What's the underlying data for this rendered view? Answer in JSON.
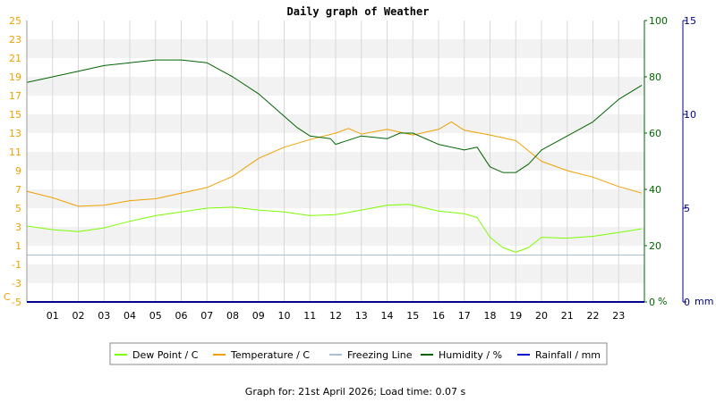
{
  "chart_data": {
    "type": "line",
    "title": "Daily graph of Weather",
    "x_ticks": [
      "01",
      "02",
      "03",
      "04",
      "05",
      "06",
      "07",
      "08",
      "09",
      "10",
      "11",
      "12",
      "13",
      "14",
      "15",
      "16",
      "17",
      "18",
      "19",
      "20",
      "21",
      "22",
      "23"
    ],
    "x_range_hours": [
      0,
      24
    ],
    "left_axis": {
      "unit_label": "C",
      "range": [
        -5,
        25
      ],
      "ticks": [
        "25",
        "23",
        "21",
        "19",
        "17",
        "15",
        "13",
        "11",
        "9",
        "7",
        "5",
        "3",
        "1",
        "-1",
        "-3",
        "-5"
      ],
      "color": "#f0a000"
    },
    "humidity_axis": {
      "unit_label": "%",
      "range": [
        0,
        100
      ],
      "ticks": [
        "100",
        "80",
        "60",
        "40",
        "20",
        "0"
      ],
      "color": "#006400"
    },
    "rainfall_axis": {
      "unit_label": "mm",
      "range": [
        0,
        15
      ],
      "ticks": [
        "15",
        "10",
        "5",
        "0"
      ],
      "color": "#00008b"
    },
    "grid": true,
    "legend_placement": "bottom",
    "series": [
      {
        "name": "Dew Point / C",
        "color": "#7cfc00",
        "axis": "left",
        "points": [
          [
            0,
            3.1
          ],
          [
            1,
            2.7
          ],
          [
            2,
            2.5
          ],
          [
            3,
            2.9
          ],
          [
            4,
            3.6
          ],
          [
            5,
            4.2
          ],
          [
            6,
            4.6
          ],
          [
            7,
            5.0
          ],
          [
            8,
            5.1
          ],
          [
            9,
            4.8
          ],
          [
            10,
            4.6
          ],
          [
            11,
            4.2
          ],
          [
            12,
            4.3
          ],
          [
            13,
            4.8
          ],
          [
            14,
            5.3
          ],
          [
            14.8,
            5.4
          ],
          [
            15,
            5.3
          ],
          [
            16,
            4.7
          ],
          [
            17,
            4.4
          ],
          [
            17.5,
            4.0
          ],
          [
            18,
            1.9
          ],
          [
            18.5,
            0.8
          ],
          [
            19,
            0.3
          ],
          [
            19.5,
            0.8
          ],
          [
            20,
            1.9
          ],
          [
            21,
            1.8
          ],
          [
            22,
            2.0
          ],
          [
            23,
            2.4
          ],
          [
            23.9,
            2.8
          ]
        ]
      },
      {
        "name": "Temperature / C",
        "color": "#f0a000",
        "axis": "left",
        "points": [
          [
            0,
            6.8
          ],
          [
            1,
            6.1
          ],
          [
            2,
            5.2
          ],
          [
            3,
            5.3
          ],
          [
            4,
            5.8
          ],
          [
            5,
            6.0
          ],
          [
            6,
            6.6
          ],
          [
            7,
            7.2
          ],
          [
            8,
            8.4
          ],
          [
            9,
            10.3
          ],
          [
            10,
            11.5
          ],
          [
            11,
            12.3
          ],
          [
            12,
            13.0
          ],
          [
            12.5,
            13.5
          ],
          [
            13,
            12.9
          ],
          [
            14,
            13.4
          ],
          [
            15,
            12.8
          ],
          [
            16,
            13.4
          ],
          [
            16.5,
            14.2
          ],
          [
            17,
            13.3
          ],
          [
            18,
            12.8
          ],
          [
            19,
            12.2
          ],
          [
            20,
            10.0
          ],
          [
            21,
            9.0
          ],
          [
            22,
            8.3
          ],
          [
            23,
            7.3
          ],
          [
            23.9,
            6.6
          ]
        ]
      },
      {
        "name": "Freezing Line",
        "color": "#a9bfd0",
        "axis": "left",
        "points": [
          [
            0,
            0
          ],
          [
            24,
            0
          ]
        ]
      },
      {
        "name": "Humidity / %",
        "color": "#006400",
        "axis": "humidity",
        "points": [
          [
            0,
            78
          ],
          [
            1,
            80
          ],
          [
            2,
            82
          ],
          [
            3,
            84
          ],
          [
            4,
            85
          ],
          [
            5,
            86
          ],
          [
            6,
            86
          ],
          [
            7,
            85
          ],
          [
            8,
            80
          ],
          [
            9,
            74
          ],
          [
            10,
            66
          ],
          [
            10.5,
            62
          ],
          [
            11,
            59
          ],
          [
            11.8,
            58
          ],
          [
            12,
            56
          ],
          [
            13,
            59
          ],
          [
            14,
            58
          ],
          [
            14.5,
            60
          ],
          [
            15,
            60
          ],
          [
            16,
            56
          ],
          [
            17,
            54
          ],
          [
            17.5,
            55
          ],
          [
            18,
            48
          ],
          [
            18.5,
            46
          ],
          [
            19,
            46
          ],
          [
            19.5,
            49
          ],
          [
            20,
            54
          ],
          [
            21,
            59
          ],
          [
            22,
            64
          ],
          [
            23,
            72
          ],
          [
            23.9,
            77
          ]
        ]
      },
      {
        "name": "Rainfall / mm",
        "color": "#0000cd",
        "axis": "rainfall",
        "points": [
          [
            0,
            0
          ],
          [
            24,
            0
          ]
        ]
      }
    ],
    "footer": "Graph for: 21st April 2026; Load time: 0.07 s"
  }
}
